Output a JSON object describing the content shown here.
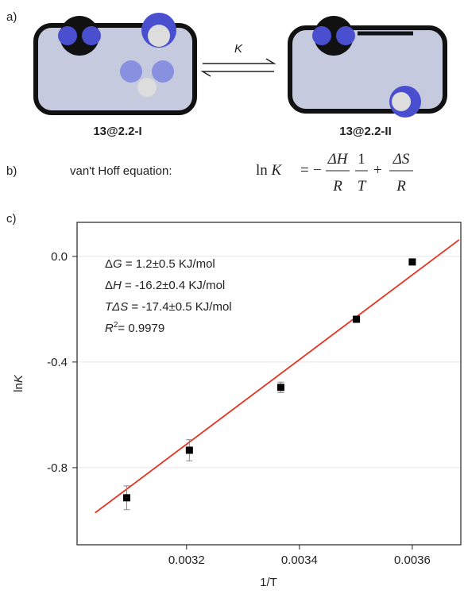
{
  "panel_a": {
    "label": "a)",
    "arrow_label": "K",
    "left_caption": "13@2.2-I",
    "right_caption": "13@2.2-II"
  },
  "panel_b": {
    "label": "b)",
    "caption": "van't Hoff equation:",
    "equation": {
      "lhs": "ln",
      "lhs_var": "K",
      "eq": "=",
      "minus": "−",
      "num1": "ΔH",
      "den1": "R",
      "num2": "1",
      "den2": "T",
      "plus": "+",
      "num3": "ΔS",
      "den3": "R"
    }
  },
  "panel_c": {
    "label": "c)"
  },
  "chart_data": {
    "type": "scatter",
    "xlabel": "1/T",
    "ylabel": [
      "ln",
      "K"
    ],
    "xlim": [
      0.003006,
      0.003686
    ],
    "ylim": [
      -1.092,
      0.129
    ],
    "xticks": [
      0.0032,
      0.0034,
      0.0036
    ],
    "yticks": [
      {
        "value": 0,
        "label": "0.0"
      },
      {
        "value": -0.4,
        "label": "-0.4"
      },
      {
        "value": -0.8,
        "label": "-0.8"
      }
    ],
    "grid": true,
    "series": [
      {
        "color": "#000000",
        "x": [
          0.003094,
          0.003205,
          0.003367,
          0.003501,
          0.0036
        ],
        "values": [
          -0.914,
          -0.734,
          -0.496,
          -0.238,
          -0.021
        ],
        "errors": [
          0.045,
          0.04,
          0.02,
          0.008,
          0.008
        ]
      }
    ],
    "fit": {
      "color": "#e8321e",
      "x": [
        0.003038,
        0.003683
      ],
      "y": [
        -0.971,
        0.063
      ]
    },
    "annotations": [
      [
        "Δ",
        "G",
        " = 1.2±0.5 KJ/mol"
      ],
      [
        "Δ",
        "H",
        " = -16.2±0.4 KJ/mol"
      ],
      [
        "T",
        "ΔS",
        " = -17.4±0.5 KJ/mol"
      ],
      [
        "R",
        "2",
        "= 0.9979"
      ]
    ]
  }
}
